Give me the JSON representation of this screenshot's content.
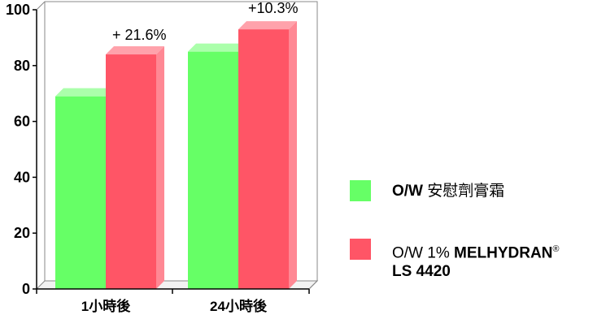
{
  "chart_data": {
    "type": "bar",
    "title": "",
    "xlabel": "",
    "ylabel": "",
    "ylim": [
      0,
      100
    ],
    "yticks": [
      "0",
      "20",
      "40",
      "60",
      "80",
      "100"
    ],
    "categories": [
      "1小時後",
      "24小時後"
    ],
    "series": [
      {
        "name": "O/W 安慰劑膏霜",
        "values": [
          69,
          85
        ],
        "color": "#66ff66"
      },
      {
        "name": "O/W 1% MELHYDRAN® LS 4420",
        "values": [
          84,
          93
        ],
        "color": "#ff5566"
      }
    ],
    "annotations": [
      "+ 21.6%",
      "+10.3%"
    ],
    "grid": false,
    "legend_position": "right",
    "style": "3d"
  },
  "legend": {
    "item1": {
      "prefix": "O/W",
      "suffix": "安慰劑膏霜",
      "color": "#66ff66"
    },
    "item2": {
      "prefix": "O/W 1%",
      "brand": "MELHYDRAN",
      "mark": "®",
      "line2": "LS 4420",
      "color": "#ff5566"
    }
  }
}
